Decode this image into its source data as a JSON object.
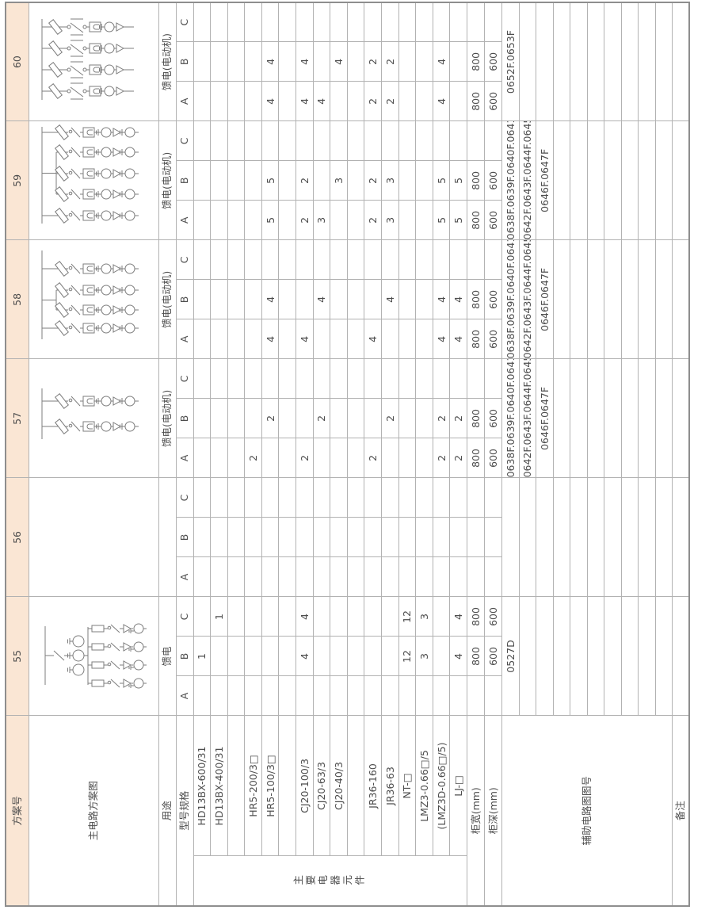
{
  "colors": {
    "header_bg": "#fae6d4",
    "grid_line": "#b2b2b2",
    "outer_line": "#8e8e8e",
    "text": "#4d4d4d",
    "diagram_stroke": "#7d7d7d"
  },
  "header": {
    "label": "方案号",
    "schemes": [
      "55",
      "56",
      "57",
      "58",
      "59",
      "60"
    ]
  },
  "row_labels": {
    "diagram": "主电路方案图",
    "usage": "用途",
    "spec": "型号规格",
    "group": "主要电器元件",
    "cabinet_width": "柜宽(mm)",
    "cabinet_depth": "柜深(mm)",
    "aux": "辅助电路图图号",
    "remark": "备注"
  },
  "usage_values": [
    "馈电",
    "",
    "馈电(电动机)",
    "馈电(电动机)",
    "馈电(电动机)",
    "馈电(电动机)"
  ],
  "circuits": [
    "A",
    "B",
    "C"
  ],
  "components": [
    {
      "label": "HD13BX-600/31",
      "cells": [
        "",
        "1",
        "",
        "",
        "",
        "",
        "",
        "",
        "",
        "",
        "",
        "",
        "",
        "",
        "",
        "",
        "",
        ""
      ]
    },
    {
      "label": "HD13BX-400/31",
      "cells": [
        "",
        "",
        "1",
        "",
        "",
        "",
        "",
        "",
        "",
        "",
        "",
        "",
        "",
        "",
        "",
        "",
        "",
        ""
      ]
    },
    {
      "label": "",
      "cells": [
        "",
        "",
        "",
        "",
        "",
        "",
        "",
        "",
        "",
        "",
        "",
        "",
        "",
        "",
        "",
        "",
        "",
        ""
      ]
    },
    {
      "label": "HR5-200/3□",
      "cells": [
        "",
        "",
        "",
        "",
        "",
        "",
        "2",
        "",
        "",
        "",
        "",
        "",
        "",
        "",
        "",
        "",
        "",
        ""
      ]
    },
    {
      "label": "HR5-100/3□",
      "cells": [
        "",
        "",
        "",
        "",
        "",
        "",
        "",
        "2",
        "",
        "4",
        "4",
        "",
        "5",
        "5",
        "",
        "4",
        "4",
        ""
      ]
    },
    {
      "label": "",
      "cells": [
        "",
        "",
        "",
        "",
        "",
        "",
        "",
        "",
        "",
        "",
        "",
        "",
        "",
        "",
        "",
        "",
        "",
        ""
      ]
    },
    {
      "label": "CJ20-100/3",
      "cells": [
        "",
        "4",
        "4",
        "",
        "",
        "",
        "2",
        "",
        "",
        "4",
        "",
        "",
        "2",
        "2",
        "",
        "4",
        "4",
        ""
      ]
    },
    {
      "label": "CJ20-63/3",
      "cells": [
        "",
        "",
        "",
        "",
        "",
        "",
        "",
        "2",
        "",
        "",
        "4",
        "",
        "3",
        "",
        "",
        "4",
        "",
        ""
      ]
    },
    {
      "label": "CJ20-40/3",
      "cells": [
        "",
        "",
        "",
        "",
        "",
        "",
        "",
        "",
        "",
        "",
        "",
        "",
        "",
        "3",
        "",
        "",
        "4",
        ""
      ]
    },
    {
      "label": "",
      "cells": [
        "",
        "",
        "",
        "",
        "",
        "",
        "",
        "",
        "",
        "",
        "",
        "",
        "",
        "",
        "",
        "",
        "",
        ""
      ]
    },
    {
      "label": "JR36-160",
      "cells": [
        "",
        "",
        "",
        "",
        "",
        "",
        "2",
        "",
        "",
        "4",
        "",
        "",
        "2",
        "2",
        "",
        "2",
        "2",
        ""
      ]
    },
    {
      "label": "JR36-63",
      "cells": [
        "",
        "",
        "",
        "",
        "",
        "",
        "",
        "2",
        "",
        "",
        "4",
        "",
        "3",
        "3",
        "",
        "2",
        "2",
        ""
      ]
    },
    {
      "label": "NT-□",
      "cells": [
        "",
        "12",
        "12",
        "",
        "",
        "",
        "",
        "",
        "",
        "",
        "",
        "",
        "",
        "",
        "",
        "",
        "",
        ""
      ]
    },
    {
      "label": "LMZ3-0.66□/5",
      "cells": [
        "",
        "3",
        "3",
        "",
        "",
        "",
        "",
        "",
        "",
        "",
        "",
        "",
        "",
        "",
        "",
        "",
        "",
        ""
      ]
    },
    {
      "label": "(LMZ3D-0.66□/5)",
      "cells": [
        "",
        "",
        "",
        "",
        "",
        "",
        "2",
        "2",
        "",
        "4",
        "4",
        "",
        "5",
        "5",
        "",
        "4",
        "4",
        ""
      ]
    },
    {
      "label": "LJ-□",
      "cells": [
        "",
        "4",
        "4",
        "",
        "",
        "",
        "2",
        "2",
        "",
        "4",
        "4",
        "",
        "5",
        "5",
        "",
        "",
        "",
        ""
      ]
    }
  ],
  "cabinet": [
    {
      "label": "柜宽(mm)",
      "cells": [
        "",
        "800",
        "800",
        "",
        "",
        "",
        "800",
        "800",
        "",
        "800",
        "800",
        "",
        "800",
        "800",
        "",
        "800",
        "800",
        ""
      ]
    },
    {
      "label": "柜深(mm)",
      "cells": [
        "",
        "600",
        "600",
        "",
        "",
        "",
        "600",
        "600",
        "",
        "600",
        "600",
        "",
        "600",
        "600",
        "",
        "600",
        "600",
        ""
      ]
    }
  ],
  "aux_rows": [
    [
      "0527D",
      "",
      "0638F.0639F.0640F.0641F",
      "0638F.0639F.0640F.0641F",
      "0638F.0639F.0640F.0641F",
      "0652F.0653F"
    ],
    [
      "",
      "",
      "0642F.0643F.0644F.0645F",
      "0642F.0643F.0644F.0645F",
      "0642F.0643F.0644F.0645F",
      ""
    ],
    [
      "",
      "",
      "0646F.0647F",
      "0646F.0647F",
      "0646F.0647F",
      ""
    ],
    [
      "",
      "",
      "",
      "",
      "",
      ""
    ],
    [
      "",
      "",
      "",
      "",
      "",
      ""
    ],
    [
      "",
      "",
      "",
      "",
      "",
      ""
    ],
    [
      "",
      "",
      "",
      "",
      "",
      ""
    ],
    [
      "",
      "",
      "",
      "",
      "",
      ""
    ],
    [
      "",
      "",
      "",
      "",
      "",
      ""
    ],
    [
      "",
      "",
      "",
      "",
      "",
      ""
    ]
  ],
  "remarks": [
    "",
    "",
    "",
    "",
    "",
    ""
  ],
  "diagrams": {
    "55": {
      "style": "feeder",
      "branches": [
        40,
        63,
        86,
        109
      ],
      "bus": [
        38,
        112
      ]
    },
    "56": null,
    "57": {
      "style": "motor",
      "branches": [
        64,
        96
      ],
      "bus": [
        48,
        112
      ]
    },
    "58": {
      "style": "motor",
      "branches": [
        38,
        61,
        86,
        113
      ],
      "bus": [
        24,
        136
      ],
      "group": [
        1,
        2
      ]
    },
    "59": {
      "style": "motor",
      "branches": [
        30,
        57,
        83,
        110,
        135
      ],
      "bus": [
        20,
        142
      ],
      "group": [
        1,
        3
      ]
    },
    "60": {
      "style": "breaker",
      "branches": [
        37,
        64,
        91,
        118
      ],
      "bus": [
        26,
        128
      ]
    }
  },
  "layout_note": "scanned table page rotated 90deg CCW"
}
